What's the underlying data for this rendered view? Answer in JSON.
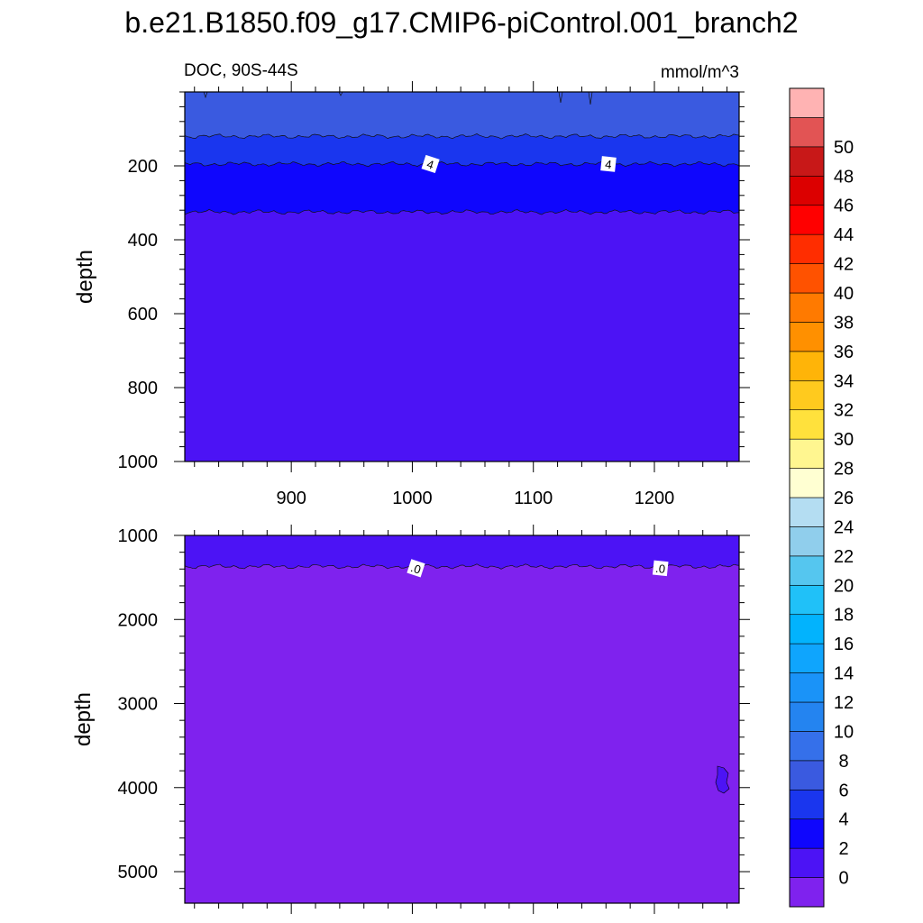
{
  "title": "b.e21.B1850.f09_g17.CMIP6-piControl.001_branch2",
  "colors": {
    "band_neg": "#7f22ee",
    "band_0_2": "#4c13f5",
    "band_2_4": "#0f06fd",
    "band_4_6": "#1a36ee",
    "band_6_8": "#3a5ae0"
  },
  "chart_data": [
    {
      "type": "heatmap",
      "panel": "upper",
      "left_label": "DOC, 90S-44S",
      "right_label": "mmol/m^3",
      "ylabel": "depth",
      "xlim": [
        812,
        1270
      ],
      "ylim": [
        1000,
        0
      ],
      "x_ticks": [
        900,
        1000,
        1100,
        1200
      ],
      "x_tick_labels": [
        "900",
        "1000",
        "1100",
        "1200"
      ],
      "y_ticks": [
        200,
        400,
        600,
        800,
        1000
      ],
      "y_tick_labels": [
        "200",
        "400",
        "600",
        "800",
        "1000"
      ],
      "bands": [
        {
          "range": [
            6,
            8
          ],
          "depth_from": 0,
          "depth_to": 120
        },
        {
          "range": [
            4,
            6
          ],
          "depth_from": 120,
          "depth_to": 195
        },
        {
          "range": [
            2,
            4
          ],
          "depth_from": 195,
          "depth_to": 325
        },
        {
          "range": [
            0,
            2
          ],
          "depth_from": 325,
          "depth_to": 1000
        }
      ],
      "contour_labels": [
        {
          "text": "4",
          "x": 1015,
          "depth": 195
        },
        {
          "text": "4",
          "x": 1162,
          "depth": 195
        }
      ]
    },
    {
      "type": "heatmap",
      "panel": "lower",
      "ylabel": "depth",
      "xlim": [
        812,
        1270
      ],
      "ylim": [
        5375,
        1000
      ],
      "y_ticks": [
        1000,
        2000,
        3000,
        4000,
        5000
      ],
      "y_tick_labels": [
        "1000",
        "2000",
        "3000",
        "4000",
        "5000"
      ],
      "bands": [
        {
          "range": [
            0,
            2
          ],
          "depth_from": 1000,
          "depth_to": 1370
        },
        {
          "range": [
            -2,
            0
          ],
          "depth_from": 1370,
          "depth_to": 5375
        }
      ],
      "contour_labels": [
        {
          "text": ".0",
          "x": 1003,
          "depth": 1390
        },
        {
          "text": ".0",
          "x": 1205,
          "depth": 1390
        }
      ]
    }
  ],
  "colorbar": {
    "labels": [
      "0",
      "2",
      "4",
      "6",
      "8",
      "10",
      "12",
      "14",
      "16",
      "18",
      "20",
      "22",
      "24",
      "26",
      "28",
      "30",
      "32",
      "34",
      "36",
      "38",
      "40",
      "42",
      "44",
      "46",
      "48",
      "50"
    ],
    "colors": [
      "#7f22ee",
      "#4c13f5",
      "#0f06fd",
      "#1a36ee",
      "#3a5ae0",
      "#3570ea",
      "#2484f0",
      "#1a93f8",
      "#0fa5fd",
      "#02b3fd",
      "#20c1f8",
      "#55c6ef",
      "#90ceec",
      "#b4ddf2",
      "#ffffd2",
      "#fff690",
      "#ffe13c",
      "#ffca1e",
      "#ffb408",
      "#ff9000",
      "#ff7a00",
      "#ff5200",
      "#ff2d00",
      "#ff0000",
      "#dc0000",
      "#c81818",
      "#e25454",
      "#ffb3b3"
    ]
  }
}
